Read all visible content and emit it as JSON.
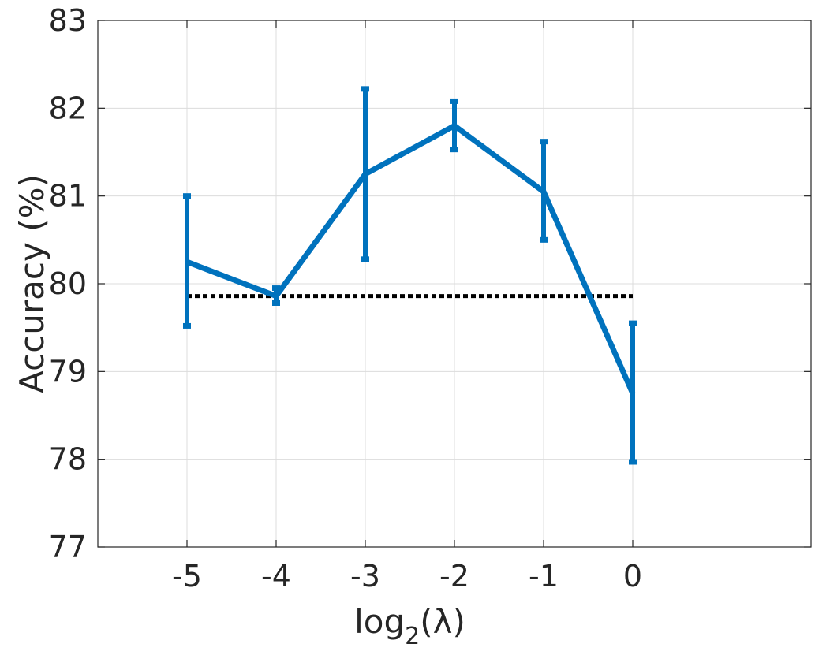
{
  "chart_data": {
    "type": "line",
    "xlabel": "log2(λ)",
    "xlabel_main": "log",
    "xlabel_sub": "2",
    "xlabel_rest": "(λ)",
    "ylabel": "Accuracy (%)",
    "xlim": [
      -6,
      2
    ],
    "ylim": [
      77,
      83
    ],
    "x_ticks": [
      "-5",
      "-4",
      "-3",
      "-2",
      "-1",
      "0"
    ],
    "y_ticks": [
      "77",
      "78",
      "79",
      "80",
      "81",
      "82",
      "83"
    ],
    "x_tick_values": [
      -5,
      -4,
      -3,
      -2,
      -1,
      0
    ],
    "y_tick_values": [
      77,
      78,
      79,
      80,
      81,
      82,
      83
    ],
    "grid": true,
    "series": [
      {
        "color": "#0072bd",
        "x": [
          -5,
          -4,
          -3,
          -2,
          -1,
          0
        ],
        "y": [
          80.25,
          79.86,
          81.25,
          81.8,
          81.05,
          78.75
        ],
        "err_low": [
          79.52,
          79.78,
          80.28,
          81.53,
          80.5,
          77.97
        ],
        "err_high": [
          81.0,
          79.95,
          82.22,
          82.08,
          81.62,
          79.55
        ]
      }
    ],
    "baseline": {
      "style": "dotted",
      "color": "#000000",
      "x": [
        -5,
        0
      ],
      "y": 79.86
    }
  }
}
